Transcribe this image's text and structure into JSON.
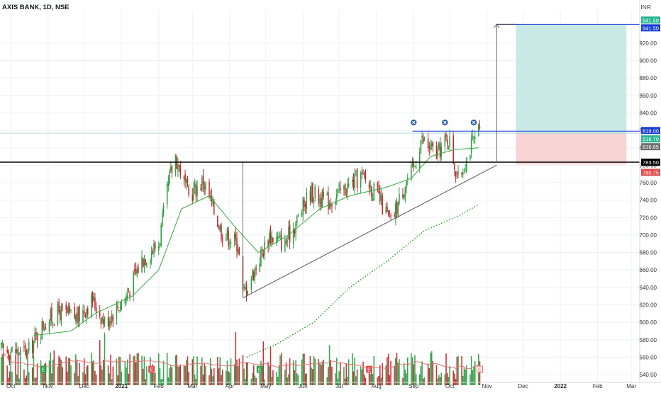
{
  "header": {
    "symbol": "AXIS BANK, 1D, NSE"
  },
  "currency": "INR",
  "colors": {
    "up": "#2e9e47",
    "down": "#c0282c",
    "sma_short": "#3aa842",
    "sma_long": "#1c9a1c",
    "volume_ma": "#e57373",
    "target_zone": "#c9e9e7",
    "stop_zone": "#f9d4d4",
    "resistance": "#1a3fd6",
    "trendline": "#555555",
    "ref_line": "#000000"
  },
  "chart_data": {
    "type": "candlestick",
    "title": "",
    "xlabel": "",
    "ylabel": "",
    "ylim": [
      536,
      958
    ],
    "x_ticks": [
      "Oct",
      "Nov",
      "Dec",
      "2021",
      "Feb",
      "Mar",
      "Apr",
      "May",
      "Jun",
      "Jul",
      "Aug",
      "Sep",
      "Oct",
      "Nov",
      "Dec",
      "2022",
      "Feb",
      "Mar"
    ],
    "y_ticks": [
      "540.00",
      "560.00",
      "580.00",
      "600.00",
      "620.00",
      "640.00",
      "660.00",
      "680.00",
      "700.00",
      "720.00",
      "740.00",
      "760.00",
      "780.00",
      "800.00",
      "820.00",
      "840.00",
      "860.00",
      "880.00",
      "900.00",
      "920.00"
    ],
    "price_labels": [
      {
        "value": 941.5,
        "text": "941.50",
        "color": "#2bb596"
      },
      {
        "value": 941.5,
        "text": "941.50",
        "color": "#1a3fd6"
      },
      {
        "value": 819.0,
        "text": "819.00",
        "color": "#1a3fd6"
      },
      {
        "value": 816.7,
        "text": "816.70",
        "color": "#2bb596"
      },
      {
        "value": 816.65,
        "text": "816.65",
        "color": "#707070"
      },
      {
        "value": 783.5,
        "text": "783.50",
        "color": "#000000"
      },
      {
        "value": 780.75,
        "text": "780.75",
        "color": "#e04d4d"
      }
    ],
    "key_levels": {
      "horizontal_support": 783.5,
      "resistance": 819.0,
      "target": 941.5,
      "stop": 780.75,
      "last_price": 816.7
    },
    "close_series": [
      {
        "d": "2020-09-28",
        "close": 568
      },
      {
        "d": "2020-10-15",
        "close": 565
      },
      {
        "d": "2020-10-28",
        "close": 598
      },
      {
        "d": "2020-11-10",
        "close": 612
      },
      {
        "d": "2020-11-25",
        "close": 605
      },
      {
        "d": "2020-12-08",
        "close": 626
      },
      {
        "d": "2020-12-18",
        "close": 600
      },
      {
        "d": "2021-01-05",
        "close": 630
      },
      {
        "d": "2021-01-18",
        "close": 672
      },
      {
        "d": "2021-02-01",
        "close": 690
      },
      {
        "d": "2021-02-10",
        "close": 765
      },
      {
        "d": "2021-02-15",
        "close": 790
      },
      {
        "d": "2021-02-26",
        "close": 745
      },
      {
        "d": "2021-03-10",
        "close": 762
      },
      {
        "d": "2021-03-25",
        "close": 705
      },
      {
        "d": "2021-04-08",
        "close": 690
      },
      {
        "d": "2021-04-12",
        "close": 632
      },
      {
        "d": "2021-04-20",
        "close": 655
      },
      {
        "d": "2021-05-04",
        "close": 700
      },
      {
        "d": "2021-05-17",
        "close": 690
      },
      {
        "d": "2021-05-28",
        "close": 720
      },
      {
        "d": "2021-06-07",
        "close": 750
      },
      {
        "d": "2021-06-21",
        "close": 738
      },
      {
        "d": "2021-07-05",
        "close": 752
      },
      {
        "d": "2021-07-20",
        "close": 768
      },
      {
        "d": "2021-08-02",
        "close": 745
      },
      {
        "d": "2021-08-13",
        "close": 713
      },
      {
        "d": "2021-08-25",
        "close": 760
      },
      {
        "d": "2021-09-01",
        "close": 775
      },
      {
        "d": "2021-09-07",
        "close": 810
      },
      {
        "d": "2021-09-20",
        "close": 792
      },
      {
        "d": "2021-09-30",
        "close": 812
      },
      {
        "d": "2021-10-08",
        "close": 762
      },
      {
        "d": "2021-10-18",
        "close": 800
      },
      {
        "d": "2021-10-25",
        "close": 817
      }
    ],
    "sma_short": [
      {
        "d": "2020-10-20",
        "v": 585
      },
      {
        "d": "2020-11-20",
        "v": 590
      },
      {
        "d": "2020-12-10",
        "v": 610
      },
      {
        "d": "2021-01-10",
        "v": 630
      },
      {
        "d": "2021-02-01",
        "v": 660
      },
      {
        "d": "2021-02-20",
        "v": 730
      },
      {
        "d": "2021-03-15",
        "v": 745
      },
      {
        "d": "2021-04-05",
        "v": 710
      },
      {
        "d": "2021-04-25",
        "v": 680
      },
      {
        "d": "2021-05-20",
        "v": 700
      },
      {
        "d": "2021-06-15",
        "v": 730
      },
      {
        "d": "2021-07-10",
        "v": 745
      },
      {
        "d": "2021-08-10",
        "v": 755
      },
      {
        "d": "2021-08-30",
        "v": 765
      },
      {
        "d": "2021-09-15",
        "v": 790
      },
      {
        "d": "2021-10-05",
        "v": 798
      },
      {
        "d": "2021-10-25",
        "v": 800
      }
    ],
    "sma_long": [
      {
        "d": "2021-04-15",
        "v": 560
      },
      {
        "d": "2021-05-10",
        "v": 575
      },
      {
        "d": "2021-06-10",
        "v": 600
      },
      {
        "d": "2021-07-10",
        "v": 640
      },
      {
        "d": "2021-08-10",
        "v": 670
      },
      {
        "d": "2021-09-10",
        "v": 705
      },
      {
        "d": "2021-10-10",
        "v": 723
      },
      {
        "d": "2021-10-25",
        "v": 735
      }
    ],
    "drawings": {
      "trendline": [
        {
          "d": "2021-04-12",
          "v": 628
        },
        {
          "d": "2021-11-09",
          "v": 780
        }
      ],
      "rise_projection_source": [
        {
          "d": "2021-04-12",
          "v": 628
        },
        {
          "d": "2021-04-12",
          "v": 783.5
        }
      ],
      "rise_projection_target": [
        {
          "d": "2021-11-09",
          "v": 783.5
        },
        {
          "d": "2021-11-09",
          "v": 941.5
        }
      ],
      "markers": [
        {
          "d": "2021-09-01",
          "v": 829
        },
        {
          "d": "2021-09-27",
          "v": 829
        },
        {
          "d": "2021-10-21",
          "v": 829
        }
      ],
      "position_box": {
        "from": "2021-11-25",
        "to": "2022-02-25",
        "entry": 816.7,
        "target": 941.5,
        "stop": 780.75
      }
    },
    "earnings_marker_label": "E",
    "earnings_dates": [
      "2020-10-28",
      "2021-01-26",
      "2021-04-26",
      "2021-07-26",
      "2021-10-26"
    ],
    "grid": true,
    "legend": "none"
  }
}
